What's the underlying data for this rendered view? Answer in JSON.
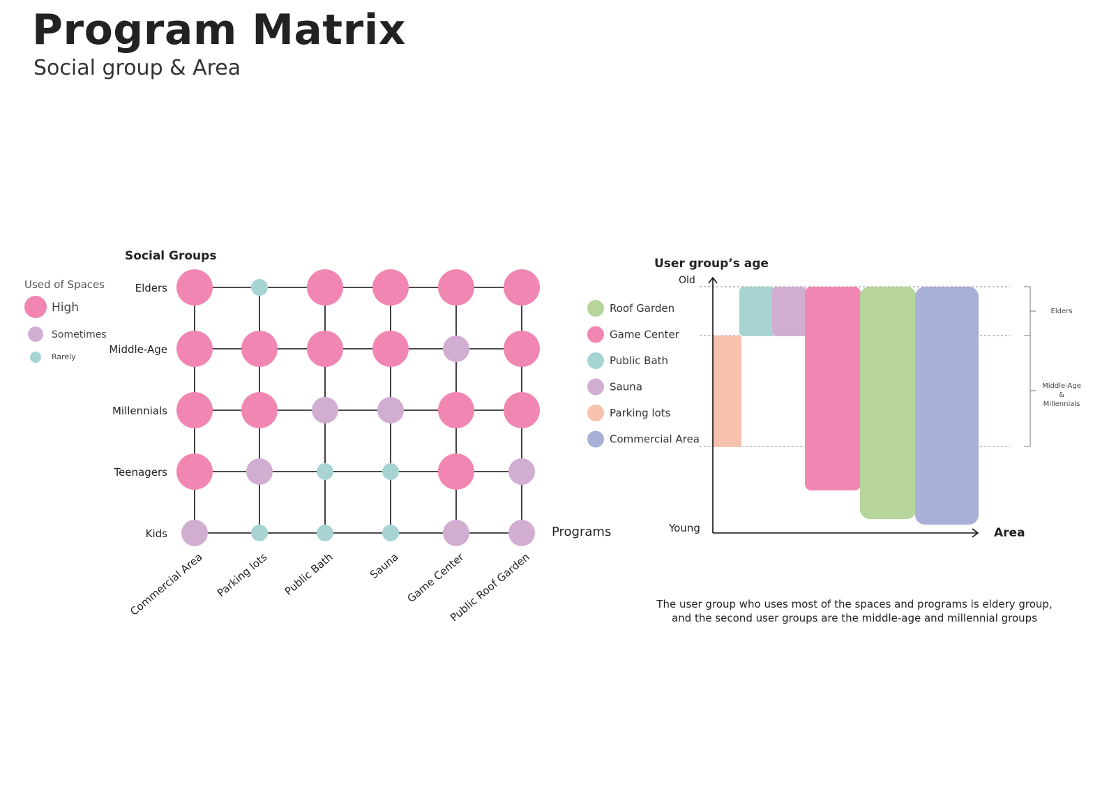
{
  "header": {
    "title": "Program Matrix",
    "subtitle": "Social group & Area"
  },
  "colors": {
    "high": "#f286b2",
    "sometimes": "#d1aed1",
    "rarely": "#a7d4d3",
    "roof_garden": "#b7d59b",
    "game_center": "#f286b2",
    "public_bath": "#a7d4d3",
    "sauna": "#d1aed1",
    "parking_lots": "#f6c2ab",
    "commercial_area": "#a8b0d8",
    "line": "#111111"
  },
  "matrix": {
    "y_title": "Social Groups",
    "x_title": "Programs",
    "legend": {
      "title": "Used of Spaces",
      "items": [
        {
          "label": "High",
          "level": "high"
        },
        {
          "label": "Sometimes",
          "level": "sometimes"
        },
        {
          "label": "Rarely",
          "level": "rarely"
        }
      ]
    },
    "rows": [
      "Elders",
      "Middle-Age",
      "Millennials",
      "Teenagers",
      "Kids"
    ],
    "columns": [
      "Commercial Area",
      "Parking lots",
      "Public Bath",
      "Sauna",
      "Game Center",
      "Public Roof Garden"
    ],
    "usage": [
      [
        "high",
        "rarely",
        "high",
        "high",
        "high",
        "high"
      ],
      [
        "high",
        "high",
        "high",
        "high",
        "sometimes",
        "high"
      ],
      [
        "high",
        "high",
        "sometimes",
        "sometimes",
        "high",
        "high"
      ],
      [
        "high",
        "sometimes",
        "rarely",
        "rarely",
        "high",
        "sometimes"
      ],
      [
        "sometimes",
        "rarely",
        "rarely",
        "rarely",
        "sometimes",
        "sometimes"
      ]
    ]
  },
  "age_chart": {
    "y_title": "User group’s age",
    "y_top_label": "Old",
    "y_bottom_label": "Young",
    "x_label": "Area",
    "legend": [
      {
        "label": "Roof Garden",
        "color_key": "roof_garden"
      },
      {
        "label": "Game Center",
        "color_key": "game_center"
      },
      {
        "label": "Public Bath",
        "color_key": "public_bath"
      },
      {
        "label": "Sauna",
        "color_key": "sauna"
      },
      {
        "label": "Parking lots",
        "color_key": "parking_lots"
      },
      {
        "label": "Commercial Area",
        "color_key": "commercial_area"
      }
    ],
    "brackets": [
      {
        "label_lines": [
          "Elders"
        ]
      },
      {
        "label_lines": [
          "Middle-Age",
          "&",
          "Millennials"
        ]
      }
    ]
  },
  "caption": {
    "line1": "The user group who uses most of the spaces and programs is eldery group,",
    "line2": "and the second user groups are the middle-age and millennial groups"
  }
}
